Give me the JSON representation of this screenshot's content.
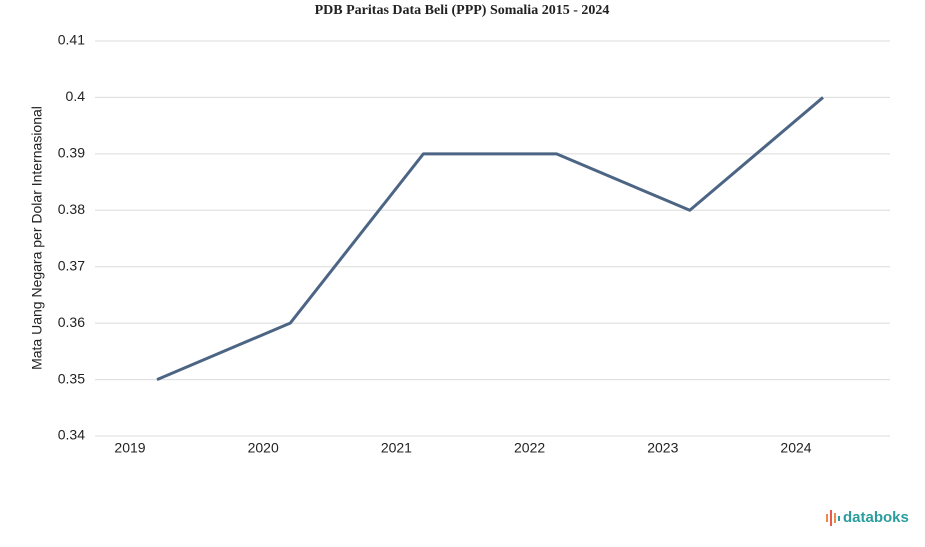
{
  "chart_data": {
    "type": "line",
    "title": "PDB Paritas Data Beli (PPP) Somalia 2015 - 2024",
    "y_label": "Mata Uang Negara per Dolar Internasional",
    "categories": [
      "2019",
      "2020",
      "2021",
      "2022",
      "2023",
      "2024"
    ],
    "series": [
      {
        "name": "Somalia",
        "color": "#4d6584",
        "values": [
          0.35,
          0.36,
          0.39,
          0.39,
          0.38,
          0.4
        ]
      }
    ],
    "ylim": [
      0.34,
      0.41
    ],
    "yticks": [
      0.34,
      0.35,
      0.36,
      0.37,
      0.38,
      0.39,
      0.4,
      0.41
    ],
    "grid": true,
    "watermark": "databoks"
  }
}
